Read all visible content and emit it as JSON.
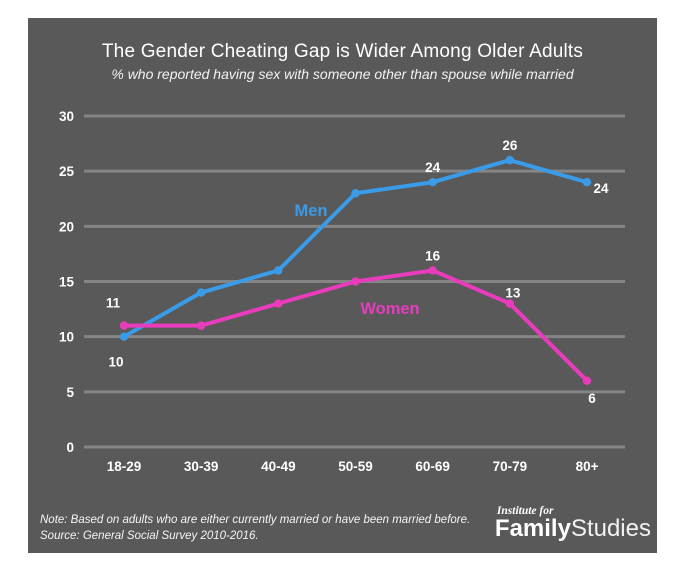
{
  "header": {
    "title": "The Gender Cheating Gap is Wider Among Older Adults",
    "subtitle": "% who reported having sex with someone other than spouse while married"
  },
  "chart_data": {
    "type": "line",
    "categories": [
      "18-29",
      "30-39",
      "40-49",
      "50-59",
      "60-69",
      "70-79",
      "80+"
    ],
    "series": [
      {
        "name": "Men",
        "color": "#3a9be9",
        "values": [
          10,
          14,
          16,
          23,
          24,
          26,
          24
        ]
      },
      {
        "name": "Women",
        "color": "#e93cbc",
        "values": [
          11,
          11,
          13,
          15,
          16,
          13,
          6
        ]
      }
    ],
    "ylim": [
      0,
      30
    ],
    "y_ticks": [
      0,
      5,
      10,
      15,
      20,
      25,
      30
    ],
    "grid": "horizontal-only",
    "legend_position": "inline-series-labels",
    "series_inline_labels": [
      {
        "series": "Men",
        "text": "Men"
      },
      {
        "series": "Women",
        "text": "Women"
      }
    ],
    "point_labels": [
      {
        "series": "Men",
        "category": "18-29",
        "text": "10",
        "placement": "below-left"
      },
      {
        "series": "Women",
        "category": "18-29",
        "text": "11",
        "placement": "above-left"
      },
      {
        "series": "Men",
        "category": "60-69",
        "text": "24",
        "placement": "above"
      },
      {
        "series": "Men",
        "category": "70-79",
        "text": "26",
        "placement": "above"
      },
      {
        "series": "Men",
        "category": "80+",
        "text": "24",
        "placement": "right"
      },
      {
        "series": "Women",
        "category": "60-69",
        "text": "16",
        "placement": "above"
      },
      {
        "series": "Women",
        "category": "70-79",
        "text": "13",
        "placement": "above-right"
      },
      {
        "series": "Women",
        "category": "80+",
        "text": "6",
        "placement": "below"
      }
    ]
  },
  "footer": {
    "note_line1": "Note: Based on adults who are either currently married or have been married before.",
    "note_line2": "Source: General Social Survey 2010-2016."
  },
  "logo": {
    "top": "Institute for",
    "bold": "Family",
    "light": "Studies"
  },
  "colors": {
    "panel_bg": "#595959",
    "gridline": "#858585",
    "text": "#ffffff",
    "men_line": "#3a9be9",
    "women_line": "#e93cbc"
  }
}
